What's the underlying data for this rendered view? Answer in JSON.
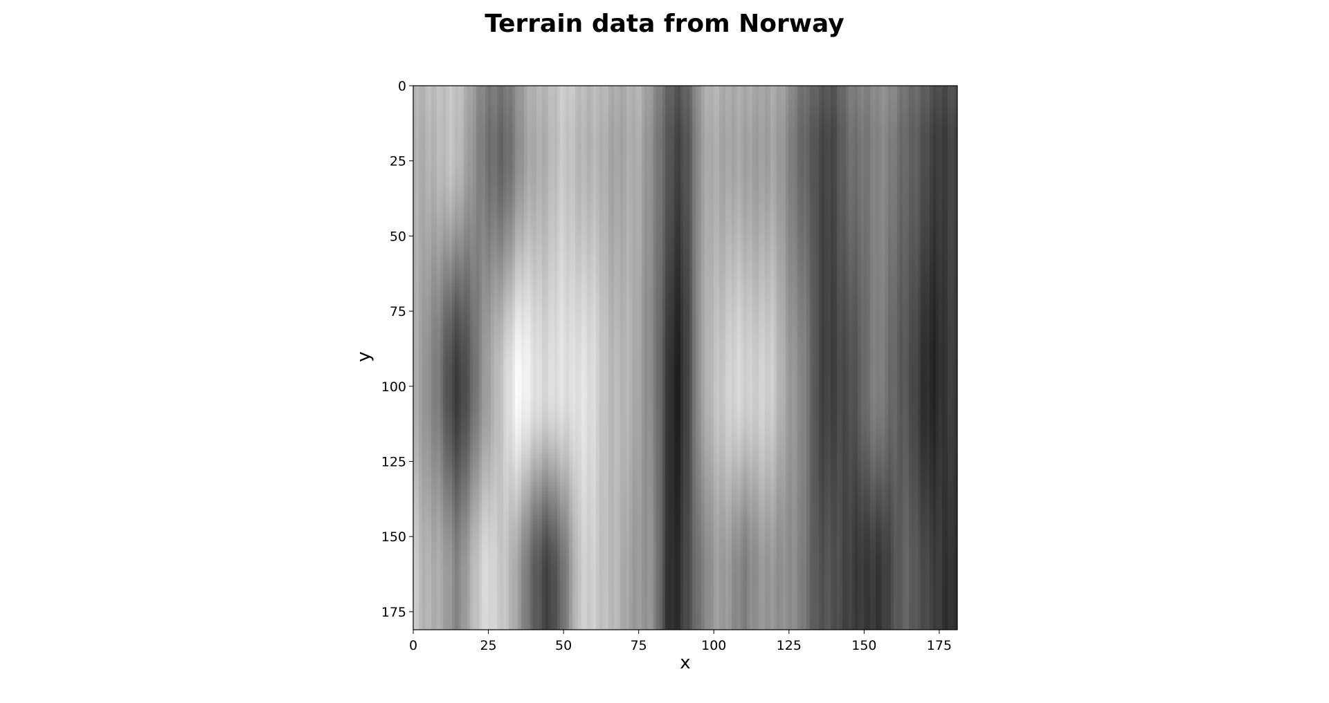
{
  "chart_data": {
    "type": "heatmap",
    "title": "Terrain data from Norway",
    "xlabel": "x",
    "ylabel": "y",
    "xlim": [
      0,
      181
    ],
    "ylim": [
      181,
      0
    ],
    "y_axis_inverted": true,
    "colormap": "gray",
    "grid": false,
    "legend": "none",
    "colorbar": false,
    "x_ticks": [
      0,
      25,
      50,
      75,
      100,
      125,
      150,
      175
    ],
    "y_ticks": [
      0,
      25,
      50,
      75,
      100,
      125,
      150,
      175
    ],
    "x_tick_labels": [
      "0",
      "25",
      "50",
      "75",
      "100",
      "125",
      "150",
      "175"
    ],
    "y_tick_labels": [
      "0",
      "25",
      "50",
      "75",
      "100",
      "125",
      "150",
      "175"
    ],
    "relative_brightness_profile": {
      "x": [
        0,
        3,
        8,
        12,
        15,
        20,
        25,
        30,
        35,
        40,
        45,
        50,
        55,
        60,
        65,
        70,
        75,
        80,
        85,
        88,
        92,
        96,
        100,
        105,
        110,
        115,
        120,
        125,
        130,
        135,
        140,
        145,
        150,
        155,
        160,
        165,
        170,
        174,
        178,
        181
      ],
      "top_y_0_to_40": [
        0.68,
        0.66,
        0.74,
        0.76,
        0.72,
        0.6,
        0.42,
        0.4,
        0.55,
        0.66,
        0.72,
        0.76,
        0.74,
        0.7,
        0.66,
        0.66,
        0.66,
        0.56,
        0.32,
        0.25,
        0.38,
        0.6,
        0.68,
        0.66,
        0.62,
        0.64,
        0.62,
        0.54,
        0.4,
        0.28,
        0.3,
        0.4,
        0.48,
        0.52,
        0.48,
        0.4,
        0.3,
        0.26,
        0.24,
        0.26
      ],
      "middle_y_80_to_120": [
        0.66,
        0.62,
        0.5,
        0.28,
        0.24,
        0.42,
        0.62,
        0.82,
        0.96,
        0.92,
        0.84,
        0.88,
        0.9,
        0.84,
        0.76,
        0.7,
        0.66,
        0.52,
        0.2,
        0.14,
        0.3,
        0.62,
        0.78,
        0.8,
        0.84,
        0.82,
        0.78,
        0.64,
        0.5,
        0.3,
        0.24,
        0.3,
        0.42,
        0.5,
        0.42,
        0.3,
        0.2,
        0.16,
        0.2,
        0.26
      ],
      "bottom_y_150_to_181": [
        0.82,
        0.74,
        0.66,
        0.6,
        0.54,
        0.7,
        0.88,
        0.78,
        0.62,
        0.4,
        0.22,
        0.46,
        0.76,
        0.82,
        0.74,
        0.66,
        0.62,
        0.54,
        0.2,
        0.18,
        0.3,
        0.5,
        0.62,
        0.58,
        0.52,
        0.56,
        0.6,
        0.56,
        0.48,
        0.34,
        0.3,
        0.28,
        0.2,
        0.22,
        0.32,
        0.38,
        0.32,
        0.22,
        0.18,
        0.24
      ]
    }
  }
}
